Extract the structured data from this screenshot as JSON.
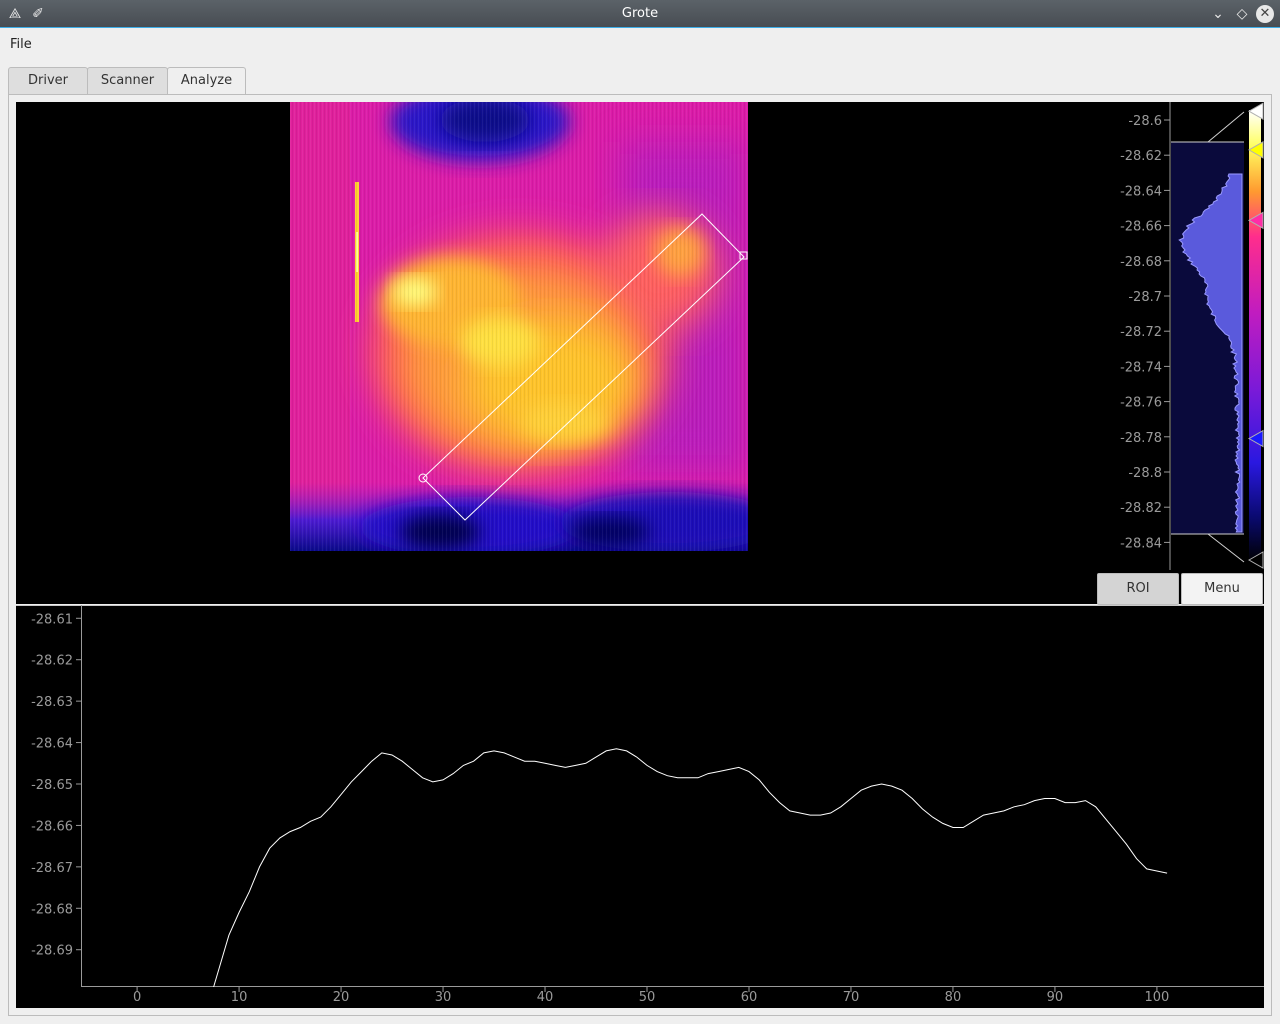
{
  "window": {
    "title": "Grote"
  },
  "menu": {
    "file_label": "File"
  },
  "tabs": [
    {
      "label": "Driver"
    },
    {
      "label": "Scanner"
    },
    {
      "label": "Analyze"
    }
  ],
  "image_view": {
    "colormap": [
      "#000000",
      "#0a0a8a",
      "#3c14d8",
      "#8a1ad0",
      "#d21cb8",
      "#ff2d8c",
      "#ff7040",
      "#ffc020",
      "#ffff60",
      "#ffffff"
    ],
    "histogram_axis_ticks": [
      "-28.6",
      "-28.62",
      "-28.64",
      "-28.66",
      "-28.68",
      "-28.7",
      "-28.72",
      "-28.74",
      "-28.76",
      "-28.78",
      "-28.8",
      "-28.82",
      "-28.84"
    ],
    "level_handles": [
      {
        "color": "#ffffff",
        "value": -28.595
      },
      {
        "color": "#ffff00",
        "value": -28.617
      },
      {
        "color": "#ff2da6",
        "value": -28.657
      },
      {
        "color": "#1a1aff",
        "value": -28.781
      },
      {
        "color": "#000000",
        "value": -28.85
      }
    ],
    "roi_button_label": "ROI",
    "menu_button_label": "Menu"
  },
  "chart_data": {
    "type": "line",
    "xlim": [
      -5.5,
      110.5
    ],
    "ylim": [
      -28.699,
      -28.608
    ],
    "x_ticks": [
      0,
      10,
      20,
      30,
      40,
      50,
      60,
      70,
      80,
      90,
      100
    ],
    "y_ticks": [
      -28.61,
      -28.62,
      -28.63,
      -28.64,
      -28.65,
      -28.66,
      -28.67,
      -28.68,
      -28.69
    ],
    "y_tick_labels": [
      "-28.61",
      "-28.62",
      "-28.63",
      "-28.64",
      "-28.65",
      "-28.66",
      "-28.67",
      "-28.68",
      "-28.69"
    ],
    "x": [
      7.5,
      9,
      10,
      11,
      12,
      13,
      14,
      15,
      16,
      17,
      18,
      19,
      20,
      21,
      22,
      23,
      24,
      25,
      26,
      27,
      28,
      29,
      30,
      31,
      32,
      33,
      34,
      35,
      36,
      37,
      38,
      39,
      40,
      41,
      42,
      43,
      44,
      45,
      46,
      47,
      48,
      49,
      50,
      51,
      52,
      53,
      54,
      55,
      56,
      57,
      58,
      59,
      60,
      61,
      62,
      63,
      64,
      65,
      66,
      67,
      68,
      69,
      70,
      71,
      72,
      73,
      74,
      75,
      76,
      77,
      78,
      79,
      80,
      81,
      82,
      83,
      84,
      85,
      86,
      87,
      88,
      89,
      90,
      91,
      92,
      93,
      94,
      95,
      96,
      97,
      98,
      99,
      100,
      101
    ],
    "y": [
      -28.699,
      -28.6865,
      -28.681,
      -28.676,
      -28.67,
      -28.6655,
      -28.663,
      -28.6615,
      -28.6605,
      -28.659,
      -28.658,
      -28.6555,
      -28.6525,
      -28.6495,
      -28.647,
      -28.6445,
      -28.6425,
      -28.643,
      -28.6445,
      -28.6465,
      -28.6485,
      -28.6495,
      -28.649,
      -28.6475,
      -28.6455,
      -28.6445,
      -28.6425,
      -28.642,
      -28.6425,
      -28.6435,
      -28.6445,
      -28.6445,
      -28.645,
      -28.6455,
      -28.646,
      -28.6455,
      -28.645,
      -28.6435,
      -28.642,
      -28.6415,
      -28.642,
      -28.6435,
      -28.6455,
      -28.647,
      -28.648,
      -28.6485,
      -28.6485,
      -28.6485,
      -28.6475,
      -28.647,
      -28.6465,
      -28.646,
      -28.647,
      -28.649,
      -28.652,
      -28.6545,
      -28.6565,
      -28.657,
      -28.6575,
      -28.6575,
      -28.657,
      -28.6555,
      -28.6535,
      -28.6515,
      -28.6505,
      -28.65,
      -28.6505,
      -28.6515,
      -28.6535,
      -28.656,
      -28.658,
      -28.6595,
      -28.6605,
      -28.6605,
      -28.659,
      -28.6575,
      -28.657,
      -28.6565,
      -28.6555,
      -28.655,
      -28.654,
      -28.6535,
      -28.6535,
      -28.6545,
      -28.6545,
      -28.654,
      -28.6555,
      -28.6585,
      -28.6615,
      -28.6645,
      -28.668,
      -28.6705,
      -28.671,
      -28.6715
    ]
  }
}
